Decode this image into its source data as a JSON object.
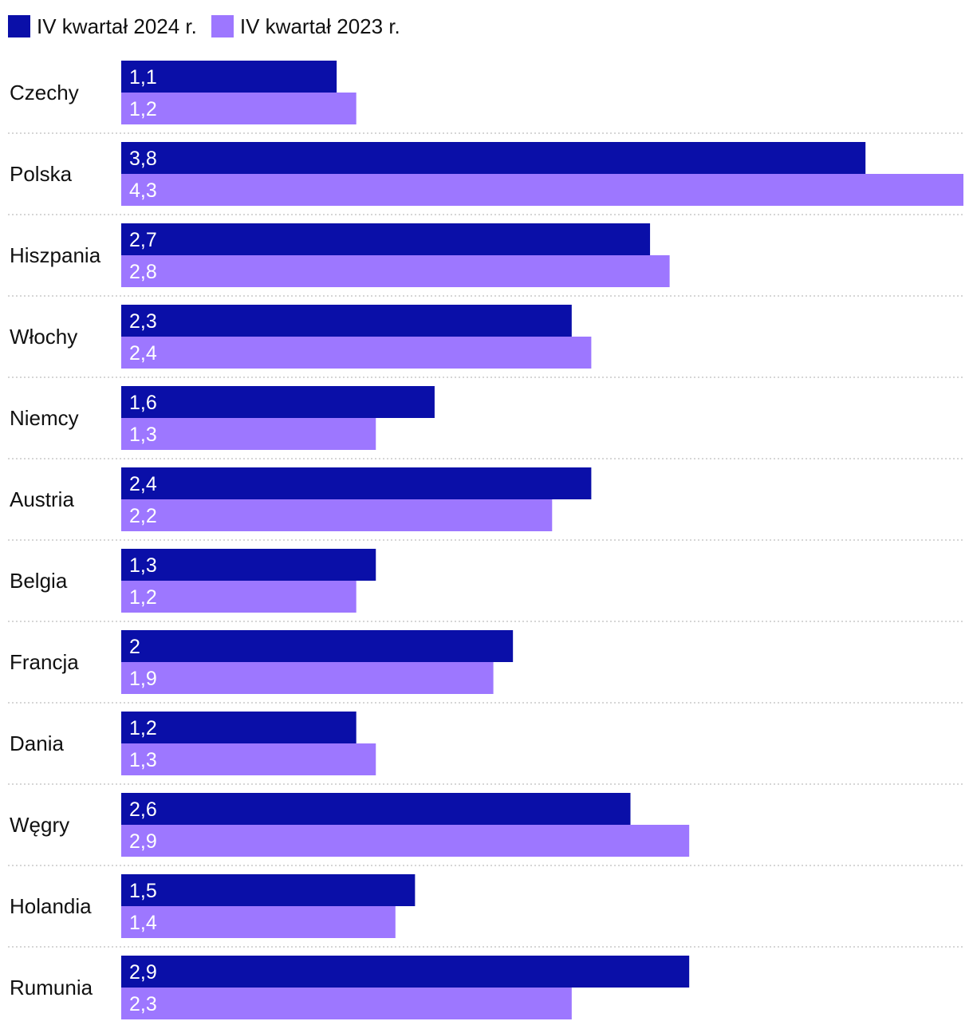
{
  "chart_data": {
    "type": "bar",
    "orientation": "horizontal",
    "categories": [
      "Czechy",
      "Polska",
      "Hiszpania",
      "Włochy",
      "Niemcy",
      "Austria",
      "Belgia",
      "Francja",
      "Dania",
      "Węgry",
      "Holandia",
      "Rumunia"
    ],
    "series": [
      {
        "name": "IV kwartał 2024 r.",
        "color": "#0a0fa8",
        "values": [
          1.1,
          3.8,
          2.7,
          2.3,
          1.6,
          2.4,
          1.3,
          2,
          1.2,
          2.6,
          1.5,
          2.9
        ],
        "labels": [
          "1,1",
          "3,8",
          "2,7",
          "2,3",
          "1,6",
          "2,4",
          "1,3",
          "2",
          "1,2",
          "2,6",
          "1,5",
          "2,9"
        ]
      },
      {
        "name": "IV kwartał 2023 r.",
        "color": "#9d77ff",
        "values": [
          1.2,
          4.3,
          2.8,
          2.4,
          1.3,
          2.2,
          1.2,
          1.9,
          1.3,
          2.9,
          1.4,
          2.3
        ],
        "labels": [
          "1,2",
          "4,3",
          "2,8",
          "2,4",
          "1,3",
          "2,2",
          "1,2",
          "1,9",
          "1,3",
          "2,9",
          "1,4",
          "2,3"
        ]
      }
    ],
    "xlim": [
      0,
      4.3
    ],
    "legend_position": "top-left",
    "grid": false,
    "row_separators": "dotted"
  }
}
